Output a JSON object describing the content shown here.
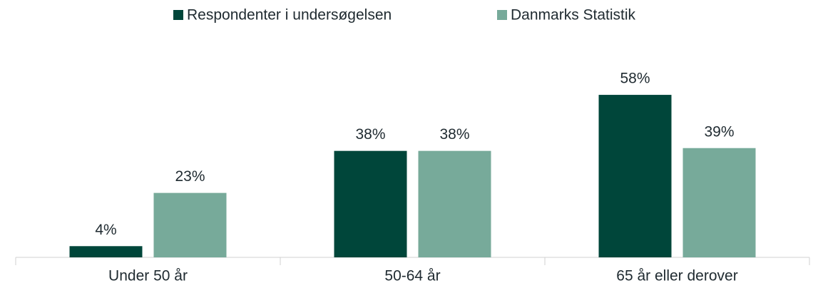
{
  "chart_data": {
    "type": "bar",
    "categories": [
      "Under 50 år",
      "50-64 år",
      "65 år eller derover"
    ],
    "series": [
      {
        "name": "Respondenter i undersøgelsen",
        "color": "#00463a",
        "values": [
          4,
          38,
          58
        ],
        "value_labels": [
          "4%",
          "38%",
          "58%"
        ]
      },
      {
        "name": "Danmarks Statistik",
        "color": "#77aa9a",
        "values": [
          23,
          38,
          39
        ],
        "value_labels": [
          "23%",
          "38%",
          "39%"
        ]
      }
    ],
    "legend": "top"
  }
}
